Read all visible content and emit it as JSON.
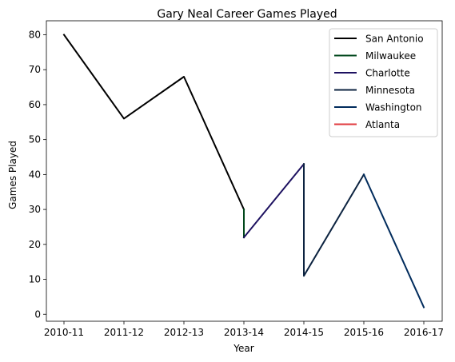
{
  "chart_data": {
    "type": "line",
    "title": "Gary Neal Career Games Played",
    "xlabel": "Year",
    "ylabel": "Games Played",
    "categories": [
      "2010-11",
      "2011-12",
      "2012-13",
      "2013-14",
      "2014-15",
      "2015-16",
      "2016-17"
    ],
    "ylim": [
      -2,
      84
    ],
    "yticks": [
      0,
      10,
      20,
      30,
      40,
      50,
      60,
      70,
      80
    ],
    "grid": false,
    "legend_position": "top-right",
    "series": [
      {
        "name": "San Antonio",
        "color": "#000000",
        "points": [
          [
            "2010-11",
            80
          ],
          [
            "2011-12",
            56
          ],
          [
            "2012-13",
            68
          ],
          [
            "2013-14",
            30
          ]
        ]
      },
      {
        "name": "Milwaukee",
        "color": "#00471b",
        "points": [
          [
            "2013-14",
            30
          ],
          [
            "2013-14",
            22
          ]
        ]
      },
      {
        "name": "Charlotte",
        "color": "#1d1160",
        "points": [
          [
            "2013-14",
            22
          ],
          [
            "2014-15",
            43
          ]
        ]
      },
      {
        "name": "Minnesota",
        "color": "#0c2340",
        "points": [
          [
            "2014-15",
            43
          ],
          [
            "2014-15",
            11
          ],
          [
            "2015-16",
            40
          ]
        ]
      },
      {
        "name": "Washington",
        "color": "#002b5c",
        "points": [
          [
            "2015-16",
            40
          ],
          [
            "2016-17",
            2
          ]
        ]
      },
      {
        "name": "Atlanta",
        "color": "#e03a3e",
        "points": []
      }
    ]
  }
}
